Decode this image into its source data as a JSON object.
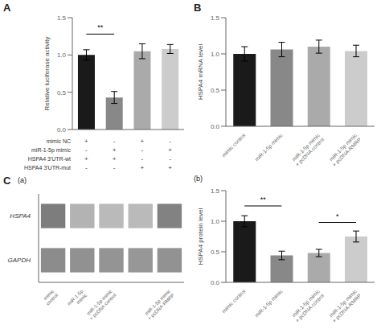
{
  "chart_data": [
    {
      "type": "bar",
      "title": "A",
      "ylabel": "Relative luciferase activity",
      "categories": [
        null,
        null,
        null,
        null
      ],
      "values": [
        1.0,
        0.43,
        1.05,
        1.08
      ],
      "errors": [
        0.07,
        0.08,
        0.1,
        0.06
      ],
      "colors": [
        "#1a1a1a",
        "#888888",
        "#aaaaaa",
        "#cccccc"
      ],
      "ylim": [
        0,
        1.5
      ],
      "yticks": [
        {
          "value": 0,
          "label": "0.0"
        },
        0.5,
        {
          "value": 1,
          "label": "1.0"
        },
        1.5
      ],
      "tick_labels": "y",
      "annotations": [
        {
          "x1": 0,
          "x2": 1,
          "y": 1.28,
          "text": "**"
        }
      ],
      "table": {
        "row_labels": [
          "mimic NC",
          "miR-1-5p mimic",
          "HSPA4 3'UTR-wt",
          "HSPA4 3'UTR-mut"
        ],
        "cells": [
          [
            "+",
            "-",
            "+",
            "-"
          ],
          [
            "-",
            "+",
            "-",
            "+"
          ],
          [
            "+",
            "+",
            "-",
            "-"
          ],
          [
            "-",
            "-",
            "+",
            "+"
          ]
        ]
      }
    },
    {
      "type": "bar",
      "title": "B",
      "ylabel": "HSPA4 mRNA level",
      "categories": [
        "mimic control",
        "miR-1-5p mimic",
        "miR-1-5p mimic\n+ pcDNA control",
        "miR-1-5p mimic\n+ pcDNA-RMRP"
      ],
      "values": [
        1.0,
        1.06,
        1.1,
        1.04
      ],
      "errors": [
        0.1,
        0.1,
        0.09,
        0.08
      ],
      "colors": [
        "#1a1a1a",
        "#888888",
        "#aaaaaa",
        "#cccccc"
      ],
      "ylim": [
        0,
        1.5
      ],
      "yticks": [
        {
          "value": 0,
          "label": "0.0"
        },
        0.5,
        {
          "value": 1,
          "label": "1.0"
        },
        1.5
      ]
    },
    {
      "type": "heatmap",
      "title": "(a)",
      "annotations": [
        {
          "text": "C"
        }
      ],
      "categories": [
        "mimic\ncontrol",
        "miR-1-5p\nmimic",
        "miR-1-5p mimic\n+ pcDNA control",
        null,
        "miR-1-5p mimic\n+ pcDNA-RMRP"
      ],
      "rows": [
        "HSPA4",
        "GAPDH"
      ],
      "cells": [
        [
          0.85,
          0.5,
          0.45,
          0.45,
          0.82
        ],
        [
          0.75,
          0.72,
          0.7,
          0.68,
          0.71
        ]
      ]
    },
    {
      "type": "bar",
      "title": "(b)",
      "ylabel": "HSPA4 protein level",
      "categories": [
        "mimic control",
        "miR-1-5p mimic",
        "miR-1-5p mimic\n+ pcDNA control",
        "miR-1-5p mimic\n+ pcDNA-RMRP"
      ],
      "values": [
        1.0,
        0.44,
        0.48,
        0.75
      ],
      "errors": [
        0.09,
        0.07,
        0.06,
        0.09
      ],
      "colors": [
        "#1a1a1a",
        "#888888",
        "#aaaaaa",
        "#cccccc"
      ],
      "ylim": [
        0,
        1.5
      ],
      "yticks": [
        {
          "value": 0,
          "label": "0.0"
        },
        0.5,
        {
          "value": 1,
          "label": "1.0"
        },
        1.5
      ],
      "annotations": [
        {
          "x1": 0,
          "x2": 1,
          "y": 1.25,
          "text": "**"
        },
        {
          "x1": 2,
          "x2": 3,
          "y": 0.98,
          "text": "*"
        }
      ]
    }
  ]
}
